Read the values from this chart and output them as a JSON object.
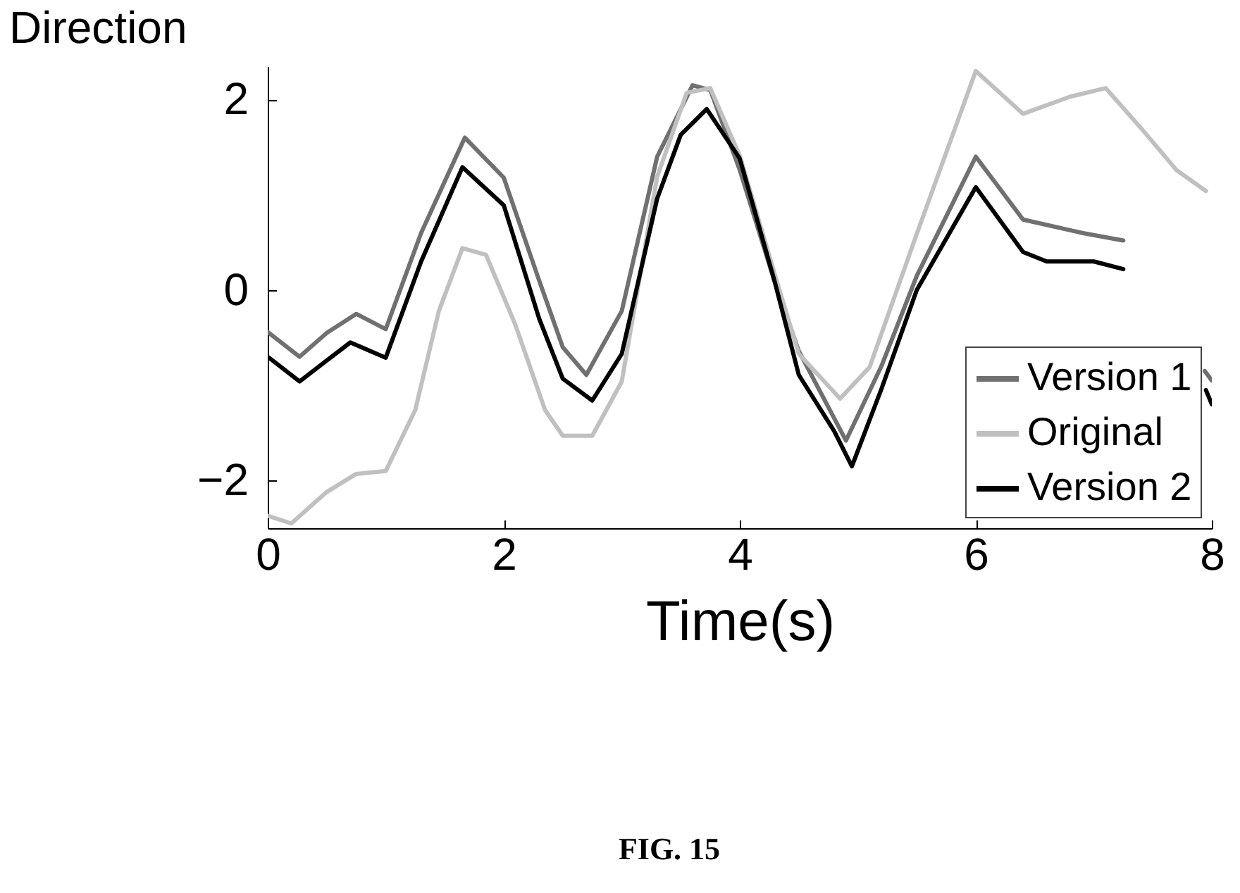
{
  "chart_data": {
    "type": "line",
    "ylabel": "Direction",
    "xlabel": "Time(s)",
    "annotations": [
      "FIG. 15"
    ],
    "xlim": [
      0,
      8
    ],
    "xticks": [
      0,
      2,
      4,
      6,
      8
    ],
    "ylim": [
      -2.5,
      2.35
    ],
    "yticks": [
      -2,
      0,
      2
    ],
    "grid": false,
    "legend": "bottom right",
    "line_style": "solid",
    "series": [
      {
        "name": "Version 1",
        "color": "#707070",
        "x": [
          0,
          0.27,
          0.5,
          0.75,
          1.0,
          1.3,
          1.67,
          2.0,
          2.3,
          2.5,
          2.7,
          3.0,
          3.3,
          3.6,
          3.75,
          4.0,
          4.3,
          4.5,
          4.9,
          5.2,
          5.5,
          6.0,
          6.4,
          6.9,
          7.25,
          7.5,
          7.94,
          8.0
        ],
        "values": [
          -0.44,
          -0.7,
          -0.45,
          -0.25,
          -0.41,
          0.6,
          1.6,
          1.18,
          0.1,
          -0.6,
          -0.89,
          -0.22,
          1.4,
          2.15,
          2.1,
          1.26,
          0.07,
          -0.64,
          -1.58,
          -0.8,
          0.15,
          1.4,
          0.74,
          0.6,
          0.52,
          null,
          -0.85,
          -0.95
        ]
      },
      {
        "name": "Original",
        "color": "#c0c0c0",
        "x": [
          0,
          0.2,
          0.5,
          0.75,
          1.0,
          1.25,
          1.45,
          1.65,
          1.85,
          2.1,
          2.35,
          2.5,
          2.75,
          3.0,
          3.3,
          3.55,
          3.75,
          4.0,
          4.3,
          4.5,
          4.85,
          5.1,
          5.5,
          6.0,
          6.4,
          6.8,
          7.1,
          7.4,
          7.7,
          7.95
        ],
        "values": [
          -2.37,
          -2.45,
          -2.12,
          -1.93,
          -1.9,
          -1.26,
          -0.22,
          0.44,
          0.37,
          -0.37,
          -1.26,
          -1.53,
          -1.53,
          -0.96,
          1.19,
          2.07,
          2.12,
          1.41,
          0.15,
          -0.67,
          -1.14,
          -0.81,
          0.59,
          2.3,
          1.85,
          2.03,
          2.12,
          1.7,
          1.26,
          1.04
        ]
      },
      {
        "name": "Version 2",
        "color": "#000000",
        "x": [
          0,
          0.27,
          0.5,
          0.7,
          1.0,
          1.3,
          1.65,
          2.0,
          2.3,
          2.5,
          2.75,
          3.0,
          3.3,
          3.5,
          3.72,
          4.0,
          4.3,
          4.5,
          4.8,
          4.95,
          5.2,
          5.5,
          6.0,
          6.4,
          6.6,
          7.0,
          7.25,
          7.45,
          7.95,
          8.0
        ],
        "values": [
          -0.7,
          -0.96,
          -0.74,
          -0.55,
          -0.71,
          0.3,
          1.29,
          0.89,
          -0.3,
          -0.93,
          -1.16,
          -0.67,
          0.96,
          1.63,
          1.9,
          1.38,
          0.07,
          -0.89,
          -1.48,
          -1.85,
          -1.04,
          0.0,
          1.08,
          0.4,
          0.3,
          0.3,
          0.22,
          null,
          -1.05,
          -1.2
        ]
      }
    ]
  }
}
